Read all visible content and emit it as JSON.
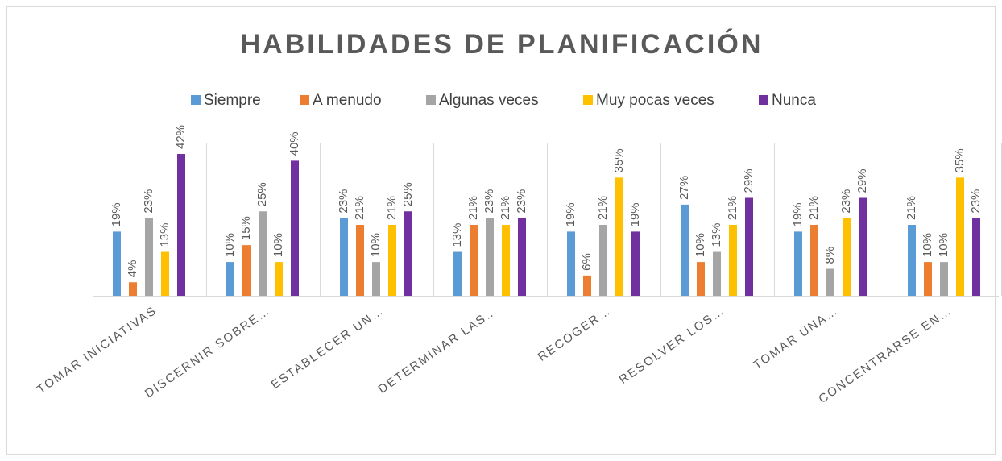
{
  "chart_data": {
    "type": "bar",
    "title": "HABILIDADES DE PLANIFICACIÓN",
    "categories": [
      "TOMAR INICIATIVAS",
      "DISCERNIR SOBRE…",
      "ESTABLECER UN…",
      "DETERMINAR LAS…",
      "RECOGER…",
      "RESOLVER LOS…",
      "TOMAR UNA…",
      "CONCENTRARSE EN…"
    ],
    "series": [
      {
        "name": "Siempre",
        "color": "#5b9bd5",
        "values": [
          19,
          10,
          23,
          13,
          19,
          27,
          19,
          21
        ],
        "value_labels": [
          "19%",
          "10%",
          "23%",
          "13%",
          "19%",
          "27%",
          "19%",
          "21%"
        ]
      },
      {
        "name": "A menudo",
        "color": "#ed7d31",
        "values": [
          4,
          15,
          21,
          21,
          6,
          10,
          21,
          10
        ],
        "value_labels": [
          "4%",
          "15%",
          "21%",
          "21%",
          "6%",
          "10%",
          "21%",
          "10%"
        ]
      },
      {
        "name": "Algunas veces",
        "color": "#a5a5a5",
        "values": [
          23,
          25,
          10,
          23,
          21,
          13,
          8,
          10
        ],
        "value_labels": [
          "23%",
          "25%",
          "10%",
          "23%",
          "21%",
          "13%",
          "8%",
          "10%"
        ]
      },
      {
        "name": "Muy pocas veces",
        "color": "#ffc000",
        "values": [
          13,
          10,
          21,
          21,
          35,
          21,
          23,
          35
        ],
        "value_labels": [
          "13%",
          "10%",
          "21%",
          "21%",
          "35%",
          "21%",
          "23%",
          "35%"
        ]
      },
      {
        "name": "Nunca",
        "color": "#7030a0",
        "values": [
          42,
          40,
          25,
          23,
          19,
          29,
          29,
          23
        ],
        "value_labels": [
          "42%",
          "40%",
          "25%",
          "23%",
          "19%",
          "29%",
          "29%",
          "23%"
        ]
      }
    ]
  }
}
